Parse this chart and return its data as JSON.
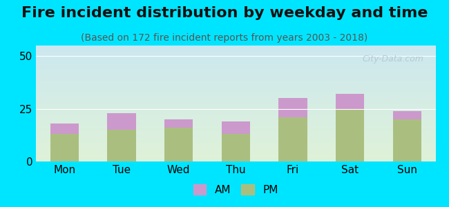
{
  "title": "Fire incident distribution by weekday and time",
  "subtitle": "(Based on 172 fire incident reports from years 2003 - 2018)",
  "categories": [
    "Mon",
    "Tue",
    "Wed",
    "Thu",
    "Fri",
    "Sat",
    "Sun"
  ],
  "pm_values": [
    13,
    15,
    16,
    13,
    21,
    25,
    20
  ],
  "am_values": [
    5,
    8,
    4,
    6,
    9,
    7,
    4
  ],
  "am_color": "#cc99cc",
  "pm_color": "#aabf7f",
  "background_outer": "#00e5ff",
  "background_chart_top": "#c8e6f0",
  "background_chart_bottom": "#d8f0d0",
  "bar_width": 0.5,
  "ylim": [
    0,
    55
  ],
  "yticks": [
    0,
    25,
    50
  ],
  "watermark_text": "City-Data.com",
  "title_fontsize": 16,
  "subtitle_fontsize": 10,
  "tick_fontsize": 11
}
